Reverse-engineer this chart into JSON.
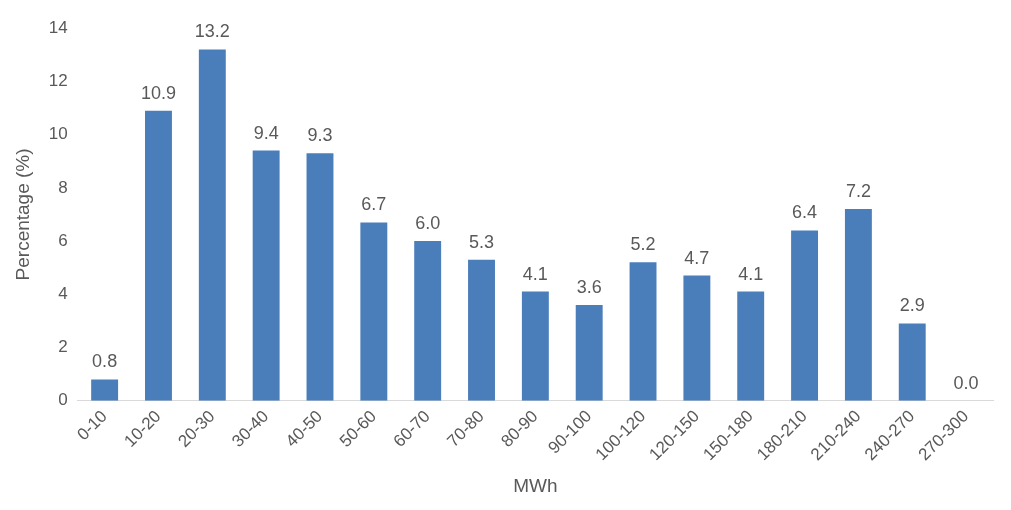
{
  "chart_data": {
    "type": "bar",
    "xlabel": "MWh",
    "ylabel": "Percentage (%)",
    "categories": [
      "0-10",
      "10-20",
      "20-30",
      "30-40",
      "40-50",
      "50-60",
      "60-70",
      "70-80",
      "80-90",
      "90-100",
      "100-120",
      "120-150",
      "150-180",
      "180-210",
      "210-240",
      "240-270",
      "270-300"
    ],
    "values": [
      0.8,
      10.9,
      13.2,
      9.4,
      9.3,
      6.7,
      6.0,
      5.3,
      4.1,
      3.6,
      5.2,
      4.7,
      4.1,
      6.4,
      7.2,
      2.9,
      0.0
    ],
    "value_labels": [
      "0.8",
      "10.9",
      "13.2",
      "9.4",
      "9.3",
      "6.7",
      "6.0",
      "5.3",
      "4.1",
      "3.6",
      "5.2",
      "4.7",
      "4.1",
      "6.4",
      "7.2",
      "2.9",
      "0.0"
    ],
    "color": "#4a7ebb",
    "ylim": [
      0,
      14
    ],
    "yticks": [
      0,
      2,
      4,
      6,
      8,
      10,
      12,
      14
    ],
    "grid": false,
    "legend": false
  }
}
